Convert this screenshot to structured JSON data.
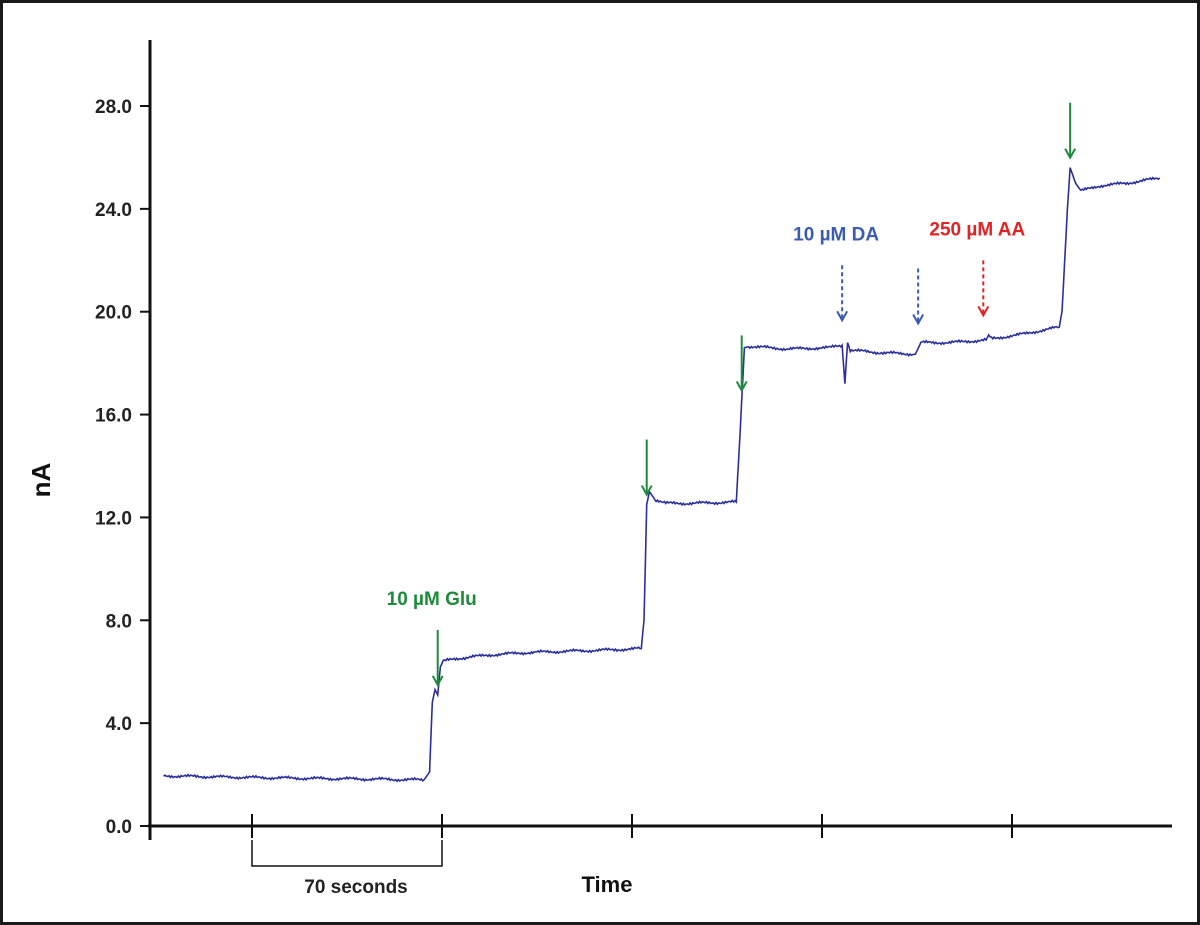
{
  "chart_data": {
    "type": "line",
    "title": "",
    "xlabel": "Time",
    "ylabel": "nA",
    "ylim": [
      0,
      28
    ],
    "y_ticks": [
      "0.0",
      "4.0",
      "8.0",
      "12.0",
      "16.0",
      "20.0",
      "24.0",
      "28.0"
    ],
    "y_tick_values": [
      0,
      4,
      8,
      12,
      16,
      20,
      24,
      28
    ],
    "x_unit": "seconds",
    "x_tick_spacing": 70,
    "x_ticks_values": [
      70,
      140,
      210,
      280,
      350
    ],
    "xlim": [
      0,
      370
    ],
    "grid": false,
    "legend": "none",
    "scale_bar_label": "70 seconds",
    "series": [
      {
        "color": "#2b2f9a",
        "points": [
          [
            5,
            1.95
          ],
          [
            30,
            1.9
          ],
          [
            60,
            1.85
          ],
          [
            85,
            1.82
          ],
          [
            95,
            1.8
          ],
          [
            101,
            1.8
          ],
          [
            103,
            2.1
          ],
          [
            104,
            4.8
          ],
          [
            105,
            5.3
          ],
          [
            106,
            5.1
          ],
          [
            107,
            6.2
          ],
          [
            108,
            6.4
          ],
          [
            112,
            6.5
          ],
          [
            125,
            6.65
          ],
          [
            140,
            6.75
          ],
          [
            155,
            6.8
          ],
          [
            170,
            6.85
          ],
          [
            181,
            6.9
          ],
          [
            182,
            8.0
          ],
          [
            183,
            12.5
          ],
          [
            184,
            13.0
          ],
          [
            186,
            12.7
          ],
          [
            190,
            12.55
          ],
          [
            200,
            12.55
          ],
          [
            216,
            12.6
          ],
          [
            217,
            14.5
          ],
          [
            219,
            18.6
          ],
          [
            221,
            18.65
          ],
          [
            235,
            18.55
          ],
          [
            250,
            18.6
          ],
          [
            255,
            18.7
          ],
          [
            256,
            17.2
          ],
          [
            257,
            18.8
          ],
          [
            258,
            18.5
          ],
          [
            270,
            18.4
          ],
          [
            282,
            18.35
          ],
          [
            284,
            18.8
          ],
          [
            295,
            18.8
          ],
          [
            308,
            18.9
          ],
          [
            309,
            19.1
          ],
          [
            310,
            18.95
          ],
          [
            320,
            19.1
          ],
          [
            330,
            19.3
          ],
          [
            335,
            19.4
          ],
          [
            336,
            20.0
          ],
          [
            338,
            24.0
          ],
          [
            339,
            25.6
          ],
          [
            341,
            25.0
          ],
          [
            343,
            24.7
          ],
          [
            350,
            24.9
          ],
          [
            360,
            25.0
          ],
          [
            372,
            25.2
          ]
        ]
      }
    ],
    "annotations": [
      {
        "label": "10 µM Glu",
        "x": 106,
        "color": "#1f8a3c",
        "style": "solid"
      },
      {
        "label": "",
        "x": 183,
        "color": "#1f8a3c",
        "style": "solid"
      },
      {
        "label": "",
        "x": 218,
        "color": "#1f8a3c",
        "style": "solid"
      },
      {
        "label": "10 µM DA",
        "x": 255,
        "color": "#3a5bb0",
        "style": "dashed"
      },
      {
        "label": "",
        "x": 283,
        "color": "#3a5bb0",
        "style": "dashed"
      },
      {
        "label": "250 µM AA",
        "x": 307,
        "color": "#e02424",
        "style": "dashed"
      },
      {
        "label": "",
        "x": 339,
        "color": "#1f8a3c",
        "style": "solid"
      }
    ]
  }
}
